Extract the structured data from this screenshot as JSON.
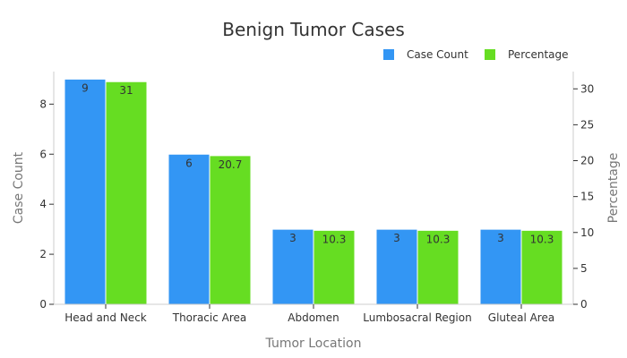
{
  "chart_data": {
    "type": "bar",
    "title": "Benign Tumor Cases",
    "xlabel": "Tumor Location",
    "ylabel": "Case Count",
    "y2label": "Percentage",
    "categories": [
      "Head and Neck",
      "Thoracic Area",
      "Abdomen",
      "Lumbosacral Region",
      "Gluteal Area"
    ],
    "series": [
      {
        "name": "Case Count",
        "axis": "left",
        "color": "#3396f4",
        "values": [
          9,
          6,
          3,
          3,
          3
        ],
        "labels": [
          "9",
          "6",
          "3",
          "3",
          "3"
        ]
      },
      {
        "name": "Percentage",
        "axis": "right",
        "color": "#66dd22",
        "values": [
          31,
          20.7,
          10.3,
          10.3,
          10.3
        ],
        "labels": [
          "31",
          "20.7",
          "10.3",
          "10.3",
          "10.3"
        ]
      }
    ],
    "ylim": [
      0,
      9.3
    ],
    "y2lim": [
      0,
      32.4
    ],
    "yticks": [
      0,
      2,
      4,
      6,
      8
    ],
    "y2ticks": [
      0,
      5,
      10,
      15,
      20,
      25,
      30
    ],
    "legend": "top-right",
    "grid": false
  }
}
